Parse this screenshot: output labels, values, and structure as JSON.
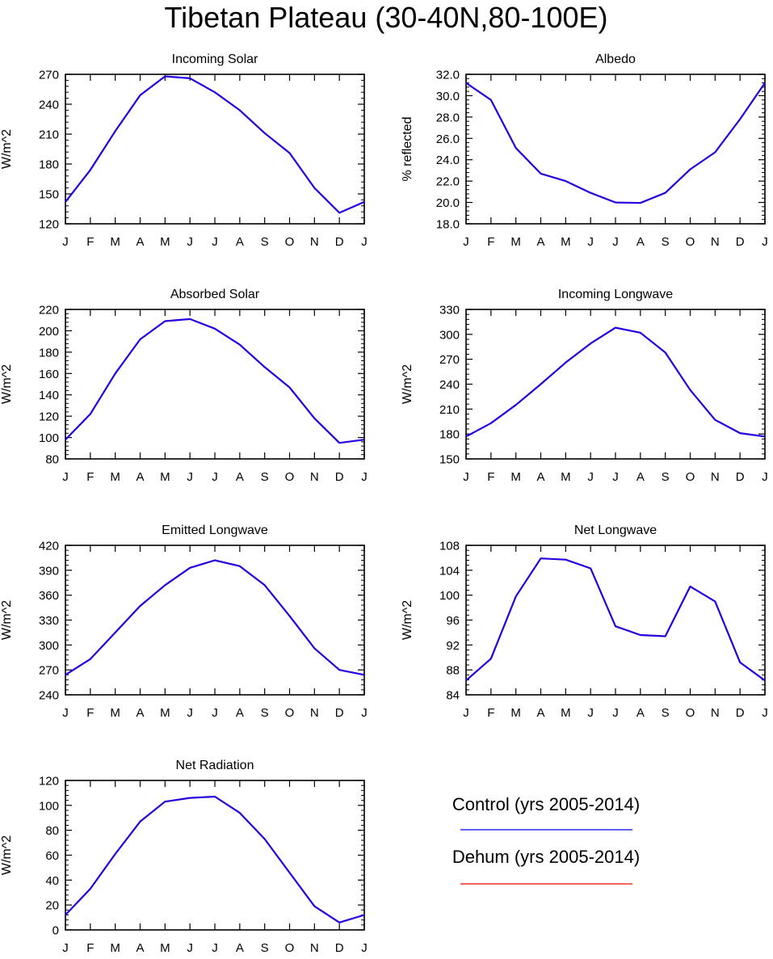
{
  "figure": {
    "title": "Tibetan Plateau (30-40N,80-100E)",
    "legend": [
      {
        "label": "Control (yrs 2005-2014)",
        "color": "#0000ff"
      },
      {
        "label": "Dehum (yrs 2005-2014)",
        "color": "#ff0000"
      }
    ]
  },
  "chart_data": [
    {
      "type": "line",
      "title": "Incoming Solar",
      "ylabel": "W/m^2",
      "xlabel": "",
      "categories": [
        "J",
        "F",
        "M",
        "A",
        "M",
        "J",
        "J",
        "A",
        "S",
        "O",
        "N",
        "D",
        "J"
      ],
      "ylim": [
        120,
        270
      ],
      "yticks": [
        "120",
        "150",
        "180",
        "210",
        "240",
        "270"
      ],
      "grid": false,
      "series": [
        {
          "color": "#2200e0",
          "values": [
            142,
            174,
            213,
            249,
            268,
            266,
            252,
            234,
            211,
            191,
            156,
            131,
            142
          ]
        }
      ]
    },
    {
      "type": "line",
      "title": "Albedo",
      "ylabel": "% reflected",
      "xlabel": "",
      "categories": [
        "J",
        "F",
        "M",
        "A",
        "M",
        "J",
        "J",
        "A",
        "S",
        "O",
        "N",
        "D",
        "J"
      ],
      "ylim": [
        18,
        32
      ],
      "yticks": [
        "18.0",
        "20.0",
        "22.0",
        "24.0",
        "26.0",
        "28.0",
        "30.0",
        "32.0"
      ],
      "grid": false,
      "series": [
        {
          "color": "#2200e0",
          "values": [
            31.2,
            29.6,
            25.1,
            22.7,
            22.0,
            20.9,
            20.0,
            19.95,
            20.9,
            23.1,
            24.7,
            27.8,
            31.2
          ]
        }
      ]
    },
    {
      "type": "line",
      "title": "Absorbed Solar",
      "ylabel": "W/m^2",
      "xlabel": "",
      "categories": [
        "J",
        "F",
        "M",
        "A",
        "M",
        "J",
        "J",
        "A",
        "S",
        "O",
        "N",
        "D",
        "J"
      ],
      "ylim": [
        80,
        220
      ],
      "yticks": [
        "80",
        "100",
        "120",
        "140",
        "160",
        "180",
        "200",
        "220"
      ],
      "grid": false,
      "series": [
        {
          "color": "#2200e0",
          "values": [
            98,
            122,
            160,
            192,
            209,
            211,
            202,
            187,
            166,
            147,
            118,
            95,
            98
          ]
        }
      ]
    },
    {
      "type": "line",
      "title": "Incoming Longwave",
      "ylabel": "W/m^2",
      "xlabel": "",
      "categories": [
        "J",
        "F",
        "M",
        "A",
        "M",
        "J",
        "J",
        "A",
        "S",
        "O",
        "N",
        "D",
        "J"
      ],
      "ylim": [
        150,
        330
      ],
      "yticks": [
        "150",
        "180",
        "210",
        "240",
        "270",
        "300",
        "330"
      ],
      "grid": false,
      "series": [
        {
          "color": "#2200e0",
          "values": [
            177,
            193,
            215,
            240,
            266,
            289,
            308,
            302,
            278,
            233,
            197,
            181,
            177
          ]
        }
      ]
    },
    {
      "type": "line",
      "title": "Emitted Longwave",
      "ylabel": "W/m^2",
      "xlabel": "",
      "categories": [
        "J",
        "F",
        "M",
        "A",
        "M",
        "J",
        "J",
        "A",
        "S",
        "O",
        "N",
        "D",
        "J"
      ],
      "ylim": [
        240,
        420
      ],
      "yticks": [
        "240",
        "270",
        "300",
        "330",
        "360",
        "390",
        "420"
      ],
      "grid": false,
      "series": [
        {
          "color": "#2200e0",
          "values": [
            264,
            283,
            315,
            347,
            372,
            393,
            402,
            395,
            372,
            335,
            296,
            270,
            264
          ]
        }
      ]
    },
    {
      "type": "line",
      "title": "Net Longwave",
      "ylabel": "W/m^2",
      "xlabel": "",
      "categories": [
        "J",
        "F",
        "M",
        "A",
        "M",
        "J",
        "J",
        "A",
        "S",
        "O",
        "N",
        "D",
        "J"
      ],
      "ylim": [
        84,
        108
      ],
      "yticks": [
        "84",
        "88",
        "92",
        "96",
        "100",
        "104",
        "108"
      ],
      "grid": false,
      "series": [
        {
          "color": "#2200e0",
          "values": [
            86.3,
            89.8,
            99.8,
            105.9,
            105.7,
            104.3,
            95.0,
            93.6,
            93.4,
            101.4,
            99.0,
            89.2,
            86.3
          ]
        }
      ]
    },
    {
      "type": "line",
      "title": "Net Radiation",
      "ylabel": "W/m^2",
      "xlabel": "",
      "categories": [
        "J",
        "F",
        "M",
        "A",
        "M",
        "J",
        "J",
        "A",
        "S",
        "O",
        "N",
        "D",
        "J"
      ],
      "ylim": [
        0,
        120
      ],
      "yticks": [
        "0",
        "20",
        "40",
        "60",
        "80",
        "100",
        "120"
      ],
      "grid": false,
      "series": [
        {
          "color": "#2200e0",
          "values": [
            12,
            33,
            61,
            87,
            103,
            106,
            107,
            94,
            73,
            46,
            19,
            6,
            12
          ]
        }
      ]
    }
  ]
}
